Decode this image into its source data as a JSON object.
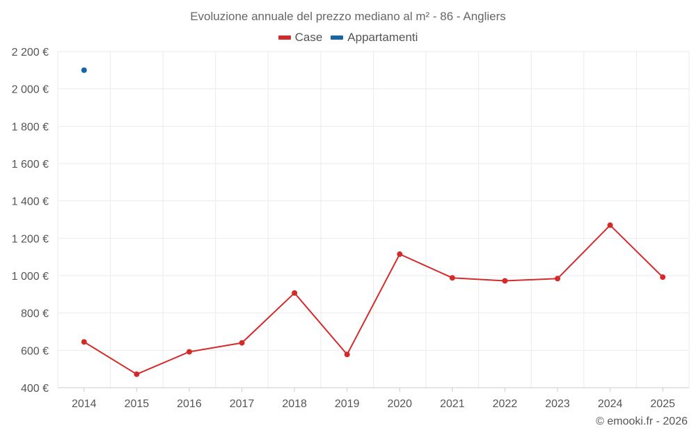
{
  "colors": {
    "grid": "#ebebeb",
    "axis": "#cccccc"
  },
  "credit": "© emooki.fr - 2026",
  "chart_data": {
    "type": "line",
    "title": "Evoluzione annuale del prezzo mediano al m² - 86 - Angliers",
    "xlabel": "",
    "ylabel": "",
    "categories": [
      "2014",
      "2015",
      "2016",
      "2017",
      "2018",
      "2019",
      "2020",
      "2021",
      "2022",
      "2023",
      "2024",
      "2025"
    ],
    "ylim": [
      400,
      2200
    ],
    "y_ticks": [
      400,
      600,
      800,
      1000,
      1200,
      1400,
      1600,
      1800,
      2000,
      2200
    ],
    "y_tick_labels": [
      "400 €",
      "600 €",
      "800 €",
      "1 000 €",
      "1 200 €",
      "1 400 €",
      "1 600 €",
      "1 800 €",
      "2 000 €",
      "2 200 €"
    ],
    "grid": true,
    "legend_position": "top-center",
    "series": [
      {
        "name": "Case",
        "color": "#d42a2a",
        "values": [
          645,
          472,
          592,
          640,
          907,
          578,
          1115,
          988,
          972,
          984,
          1270,
          992
        ]
      },
      {
        "name": "Appartamenti",
        "color": "#1565a8",
        "values": [
          2100,
          null,
          null,
          null,
          null,
          null,
          null,
          null,
          null,
          null,
          null,
          null
        ]
      }
    ]
  }
}
